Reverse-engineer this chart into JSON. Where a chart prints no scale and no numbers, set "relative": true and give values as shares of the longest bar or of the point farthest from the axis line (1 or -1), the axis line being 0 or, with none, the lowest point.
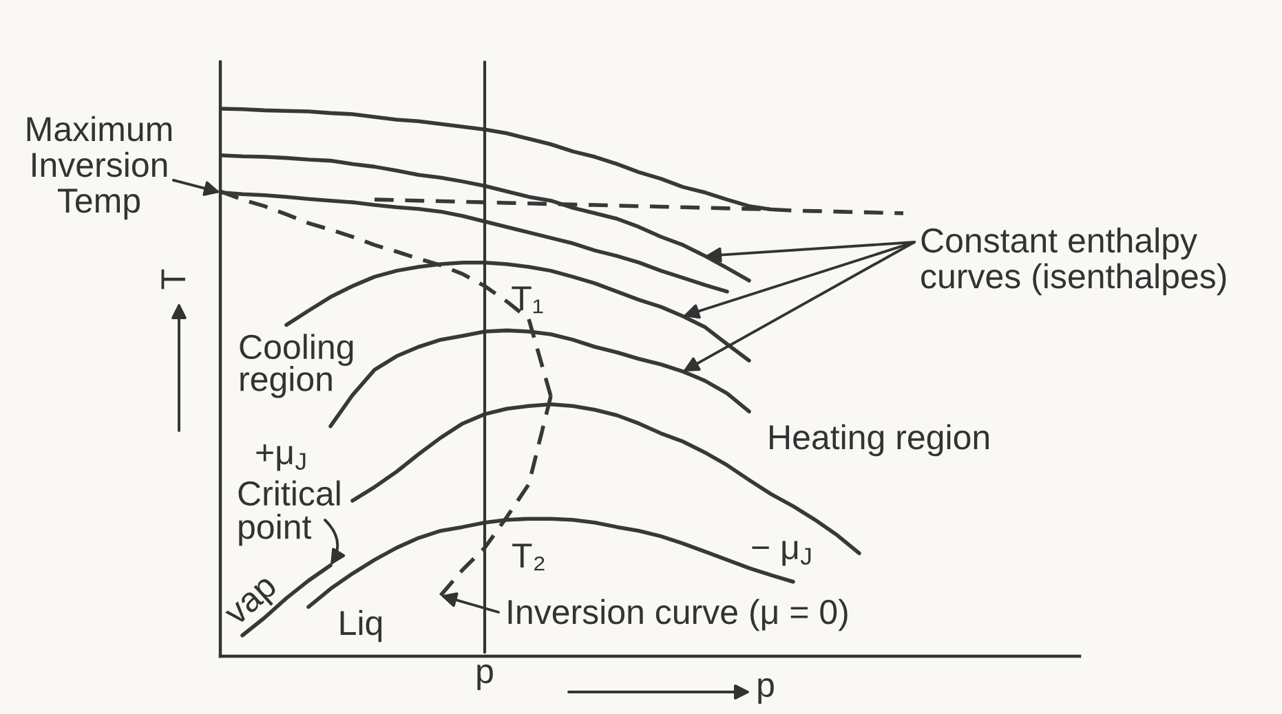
{
  "chart_data": {
    "type": "line",
    "relative": true,
    "xlabel": "p",
    "ylabel": "T",
    "line_style": "solid",
    "categories": [
      null,
      null,
      null,
      null,
      null,
      null,
      null,
      null,
      null,
      null,
      null,
      null,
      null,
      null,
      null,
      null,
      null,
      null,
      null,
      null,
      null,
      null,
      null,
      null,
      null,
      null,
      null,
      null,
      null,
      null,
      null,
      null,
      null,
      null,
      null,
      null,
      null,
      null,
      null,
      null
    ],
    "series": [
      {
        "color": "#383838",
        "values": [
          1.0,
          0.999,
          0.997,
          0.996,
          0.995,
          0.992,
          0.99,
          0.985,
          0.98,
          0.977,
          0.972,
          0.967,
          0.962,
          0.955,
          0.945,
          0.935,
          0.922,
          0.912,
          0.899,
          0.884,
          0.872,
          0.857,
          0.847,
          0.834,
          0.822,
          0.816,
          null,
          null,
          null,
          null,
          null,
          null,
          null,
          null,
          null,
          null,
          null,
          null,
          null,
          null
        ]
      },
      {
        "color": "#383838",
        "values": [
          0.915,
          0.913,
          0.912,
          0.91,
          0.907,
          0.905,
          0.899,
          0.894,
          0.887,
          0.879,
          0.874,
          0.867,
          0.859,
          0.849,
          0.839,
          0.832,
          0.819,
          0.809,
          0.799,
          0.784,
          0.766,
          0.751,
          0.731,
          0.709,
          0.686,
          null,
          null,
          null,
          null,
          null,
          null,
          null,
          null,
          null,
          null,
          null,
          null,
          null,
          null,
          null
        ]
      },
      {
        "color": "#383838",
        "values": [
          0.847,
          0.844,
          0.842,
          0.839,
          0.835,
          0.832,
          0.829,
          0.824,
          0.82,
          0.817,
          0.812,
          0.804,
          0.794,
          0.784,
          0.774,
          0.764,
          0.754,
          0.741,
          0.731,
          0.719,
          0.704,
          0.691,
          0.678,
          0.666,
          null,
          null,
          null,
          null,
          null,
          null,
          null,
          null,
          null,
          null,
          null,
          null,
          null,
          null,
          null,
          null
        ]
      },
      {
        "color": "#383838",
        "values": [
          null,
          null,
          null,
          0.605,
          0.631,
          0.656,
          0.676,
          0.693,
          0.704,
          0.711,
          0.716,
          0.719,
          0.719,
          0.716,
          0.711,
          0.704,
          0.693,
          0.681,
          0.666,
          0.651,
          0.638,
          0.621,
          0.601,
          0.57,
          0.54,
          null,
          null,
          null,
          null,
          null,
          null,
          null,
          null,
          null,
          null,
          null,
          null,
          null,
          null,
          null
        ]
      },
      {
        "color": "#383838",
        "values": [
          null,
          null,
          null,
          null,
          null,
          0.42,
          0.477,
          0.523,
          0.548,
          0.565,
          0.578,
          0.585,
          0.593,
          0.595,
          0.593,
          0.588,
          0.578,
          0.565,
          0.555,
          0.543,
          0.533,
          0.52,
          0.503,
          0.48,
          0.447,
          null,
          null,
          null,
          null,
          null,
          null,
          null,
          null,
          null,
          null,
          null,
          null,
          null,
          null,
          null
        ]
      },
      {
        "color": "#383838",
        "values": [
          null,
          null,
          null,
          null,
          null,
          null,
          0.284,
          0.309,
          0.337,
          0.369,
          0.399,
          0.425,
          0.442,
          0.452,
          0.457,
          0.46,
          0.457,
          0.45,
          0.44,
          0.425,
          0.407,
          0.392,
          0.372,
          0.349,
          0.322,
          0.296,
          0.274,
          0.249,
          0.221,
          0.188,
          null,
          null,
          null,
          null,
          null,
          null,
          null,
          null,
          null,
          null
        ]
      },
      {
        "color": "#383838",
        "values": [
          null,
          null,
          null,
          null,
          0.09,
          0.123,
          0.151,
          0.176,
          0.198,
          0.216,
          0.229,
          0.236,
          0.244,
          0.249,
          0.251,
          0.251,
          0.249,
          0.244,
          0.236,
          0.229,
          0.219,
          0.206,
          0.191,
          0.176,
          0.161,
          0.148,
          0.136,
          null,
          null,
          null,
          null,
          null,
          null,
          null,
          null,
          null,
          null,
          null,
          null,
          null
        ]
      },
      {
        "color": "#383838",
        "values": [
          null,
          0.038,
          0.07,
          0.106,
          0.138,
          0.166,
          null,
          null,
          null,
          null,
          null,
          null,
          null,
          null,
          null,
          null,
          null,
          null,
          null,
          null,
          null,
          null,
          null,
          null,
          null,
          null,
          null,
          null,
          null,
          null,
          null,
          null,
          null,
          null,
          null,
          null,
          null,
          null,
          null,
          null
        ]
      },
      {
        "color": "#383838",
        "line_style": "dashed",
        "values": [
          0.849,
          0.834,
          0.822,
          0.807,
          0.791,
          0.779,
          0.766,
          0.751,
          0.739,
          0.726,
          0.714,
          0.698,
          0.676,
          0.648,
          0.616,
          0.475,
          null,
          null,
          null,
          null,
          null,
          null,
          null,
          null,
          null,
          null,
          null,
          null,
          null,
          null,
          null,
          null,
          null,
          null,
          null,
          null,
          null,
          null,
          null,
          null
        ]
      },
      {
        "color": "#383838",
        "line_style": "dashed",
        "values": [
          null,
          null,
          null,
          null,
          null,
          null,
          null,
          null,
          null,
          null,
          0.111,
          0.158,
          0.198,
          0.254,
          0.314,
          0.475,
          null,
          null,
          null,
          null,
          null,
          null,
          null,
          null,
          null,
          null,
          null,
          null,
          null,
          null,
          null,
          null,
          null,
          null,
          null,
          null,
          null,
          null,
          null,
          null
        ]
      },
      {
        "color": "#383838",
        "line_style": "dashed",
        "values": [
          null,
          null,
          null,
          null,
          null,
          null,
          null,
          0.834,
          0.833,
          0.832,
          0.831,
          0.83,
          0.829,
          0.828,
          0.827,
          0.826,
          0.825,
          0.824,
          0.823,
          0.822,
          0.821,
          0.82,
          0.819,
          0.818,
          0.817,
          0.816,
          0.814,
          0.813,
          0.812,
          0.811,
          0.81,
          0.809,
          null,
          null,
          null,
          null,
          null,
          null,
          null,
          null
        ]
      }
    ],
    "annotations": [
      "Maximum\nInversion\nTemp",
      "Constant enthalpy\ncurves (isenthalpes)",
      "T₁",
      "Cooling\nregion",
      "Heating region",
      "+μ$_{J}$",
      "Critical\npoint",
      "− μ$_{J}$",
      "T₂",
      "vap",
      "Inversion curve (μ = 0)",
      "Liq",
      "p"
    ]
  }
}
